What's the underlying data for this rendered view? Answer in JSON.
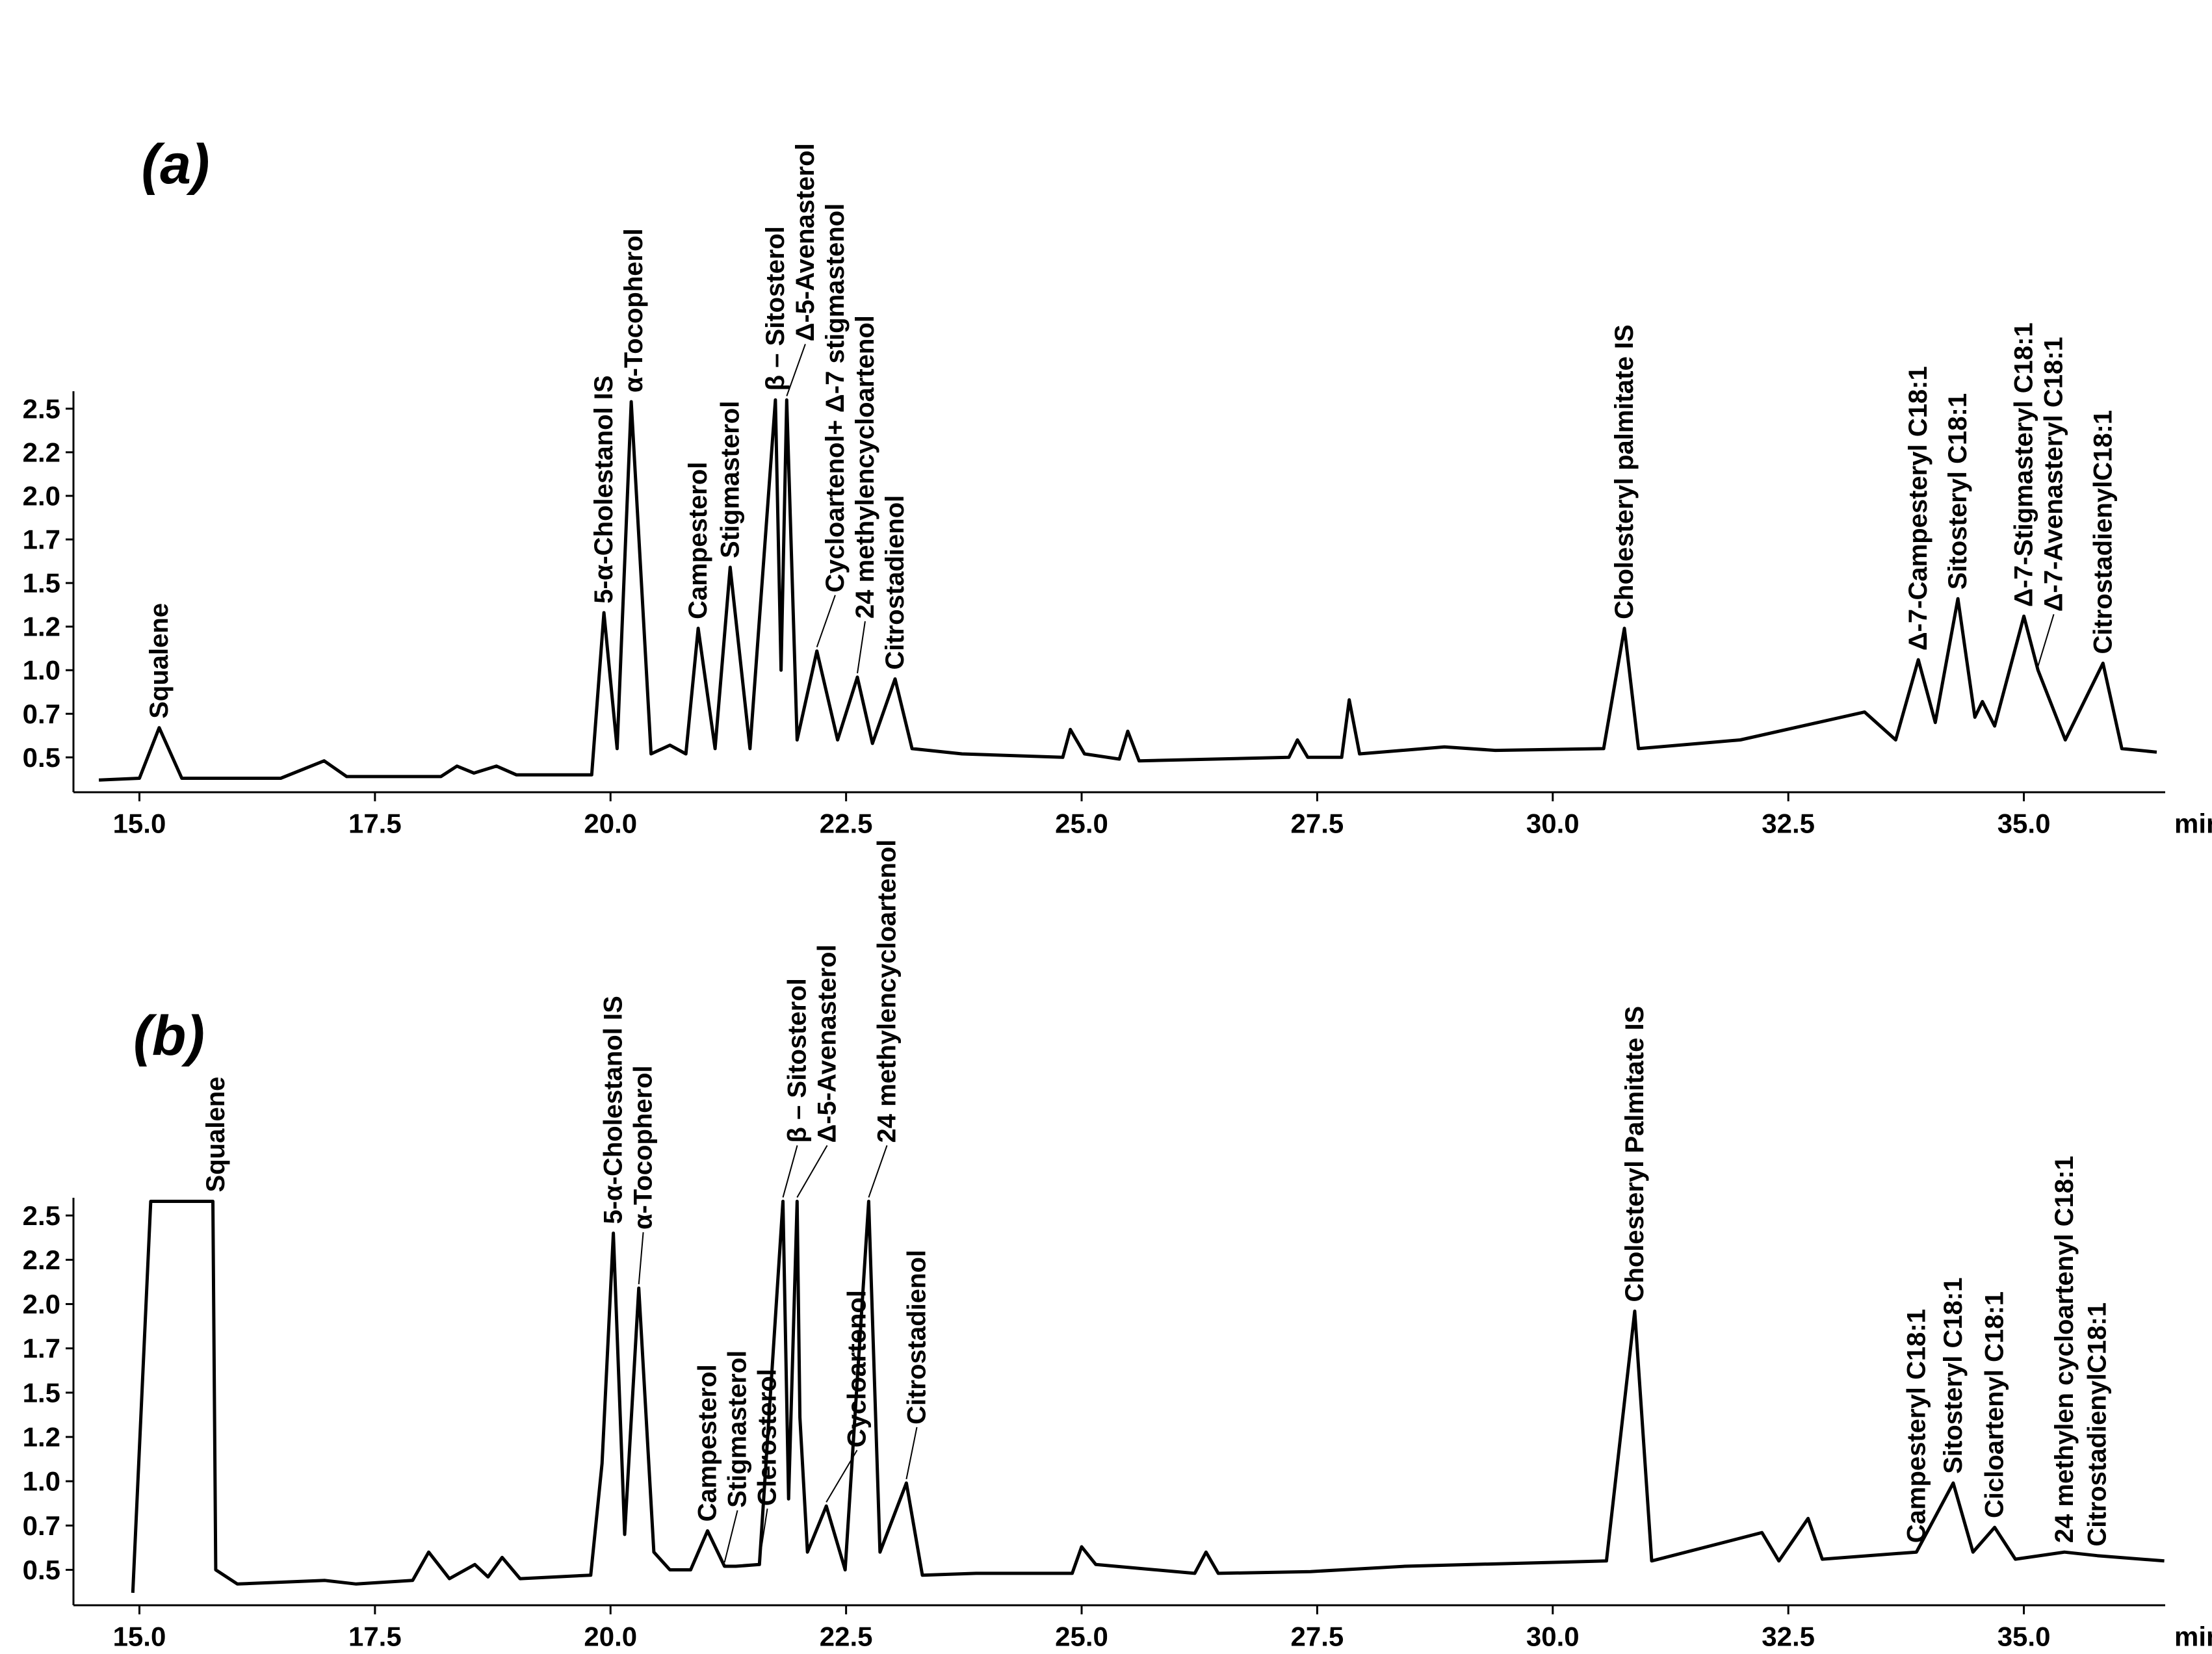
{
  "chart_data": [
    {
      "type": "line",
      "label": "(a)",
      "xlabel": "min",
      "color": "#000000",
      "xlim": [
        14.3,
        36.5
      ],
      "ylim": [
        0.3,
        2.6
      ],
      "xticks": [
        {
          "value": 15,
          "label": "15.0"
        },
        17.5,
        {
          "value": 20,
          "label": "20.0"
        },
        22.5,
        {
          "value": 25,
          "label": "25.0"
        },
        27.5,
        {
          "value": 30,
          "label": "30.0"
        },
        32.5,
        {
          "value": 35,
          "label": "35.0"
        }
      ],
      "yticks": [
        {
          "value": 2.5,
          "label": "2.5"
        },
        {
          "value": 2.25,
          "label": "2.2"
        },
        {
          "value": 2,
          "label": "2.0"
        },
        {
          "value": 1.75,
          "label": "1.7"
        },
        1.5,
        {
          "value": 1.25,
          "label": "1.2"
        },
        {
          "value": 1,
          "label": "1.0"
        },
        {
          "value": 0.75,
          "label": "0.7"
        },
        0.5
      ],
      "x": [
        14.57,
        15.0,
        15.21,
        15.45,
        16.5,
        16.96,
        17.2,
        18.2,
        18.37,
        18.55,
        18.79,
        19.0,
        19.8,
        19.93,
        20.07,
        20.22,
        20.43,
        20.63,
        20.8,
        20.93,
        21.11,
        21.27,
        21.48,
        21.75,
        21.81,
        21.87,
        21.98,
        22.19,
        22.41,
        22.62,
        22.78,
        23.02,
        23.2,
        23.73,
        24.8,
        24.88,
        25.03,
        25.4,
        25.49,
        25.61,
        27.2,
        27.29,
        27.4,
        27.76,
        27.84,
        27.95,
        28.85,
        29.39,
        30.54,
        30.76,
        30.91,
        31.99,
        33.31,
        33.64,
        33.88,
        34.06,
        34.3,
        34.48,
        34.56,
        34.69,
        35.0,
        35.15,
        35.44,
        35.84,
        36.04,
        36.41
      ],
      "values": [
        0.37,
        0.38,
        0.67,
        0.38,
        0.38,
        0.48,
        0.39,
        0.39,
        0.45,
        0.41,
        0.45,
        0.4,
        0.4,
        1.33,
        0.55,
        2.54,
        0.52,
        0.57,
        0.52,
        1.24,
        0.55,
        1.59,
        0.55,
        2.55,
        1.0,
        2.55,
        0.6,
        1.11,
        0.6,
        0.96,
        0.58,
        0.95,
        0.55,
        0.52,
        0.5,
        0.66,
        0.52,
        0.49,
        0.65,
        0.48,
        0.5,
        0.6,
        0.5,
        0.5,
        0.83,
        0.52,
        0.56,
        0.54,
        0.55,
        1.24,
        0.55,
        0.6,
        0.76,
        0.6,
        1.06,
        0.7,
        1.41,
        0.73,
        0.82,
        0.68,
        1.31,
        1.0,
        0.6,
        1.04,
        0.55,
        0.53
      ],
      "annotations": [
        {
          "text": "Squalene",
          "x": 15.21
        },
        {
          "text": "5-α-Cholestanol IS",
          "x": 19.93
        },
        {
          "text": "α-Tocopherol",
          "x": 20.22
        },
        {
          "text": "Campesterol",
          "x": 20.93
        },
        {
          "text": "Stigmasterol",
          "x": 21.27
        },
        {
          "text": "β – Sitosterol",
          "x": 21.75
        },
        {
          "text": "Δ-5-Avenasterol",
          "x": 21.87
        },
        {
          "text": "Cycloartenol+ Δ-7 stigmastenol",
          "x": 22.19
        },
        {
          "text": "24 methylencycloartenol",
          "x": 22.62
        },
        {
          "text": "Citrostadienol",
          "x": 23.02
        },
        {
          "text": "Cholesteryl palmitate IS",
          "x": 30.76
        },
        {
          "text": "Δ-7-Campesteryl C18:1",
          "x": 33.88
        },
        {
          "text": "Sitosteryl C18:1",
          "x": 34.3
        },
        {
          "text": "Δ-7-Stigmasteryl C18:1",
          "x": 35.0
        },
        {
          "text": "Δ-7-Avenasteryl C18:1",
          "x": 35.15
        },
        {
          "text": "CitrostadienylC18:1",
          "x": 35.84
        }
      ]
    },
    {
      "type": "line",
      "label": "(b)",
      "xlabel": "min",
      "color": "#000000",
      "xlim": [
        14.3,
        36.5
      ],
      "ylim": [
        0.3,
        2.6
      ],
      "xticks": [
        {
          "value": 15,
          "label": "15.0"
        },
        17.5,
        {
          "value": 20,
          "label": "20.0"
        },
        22.5,
        {
          "value": 25,
          "label": "25.0"
        },
        27.5,
        {
          "value": 30,
          "label": "30.0"
        },
        32.5,
        {
          "value": 35,
          "label": "35.0"
        }
      ],
      "yticks": [
        {
          "value": 2.5,
          "label": "2.5"
        },
        {
          "value": 2.25,
          "label": "2.2"
        },
        {
          "value": 2,
          "label": "2.0"
        },
        {
          "value": 1.75,
          "label": "1.7"
        },
        1.5,
        {
          "value": 1.25,
          "label": "1.2"
        },
        {
          "value": 1,
          "label": "1.0"
        },
        {
          "value": 0.75,
          "label": "0.7"
        },
        0.5
      ],
      "x": [
        14.93,
        15.12,
        15.78,
        15.81,
        16.04,
        16.97,
        17.3,
        17.9,
        18.07,
        18.29,
        18.56,
        18.7,
        18.85,
        19.04,
        19.79,
        19.91,
        20.03,
        20.15,
        20.3,
        20.46,
        20.63,
        20.85,
        21.03,
        21.21,
        21.33,
        21.58,
        21.83,
        21.89,
        21.98,
        22.01,
        22.09,
        22.29,
        22.49,
        22.74,
        22.86,
        23.14,
        23.31,
        23.88,
        24.9,
        25.0,
        25.15,
        26.2,
        26.32,
        26.45,
        27.43,
        28.43,
        30.57,
        30.87,
        31.05,
        32.22,
        32.4,
        32.71,
        32.86,
        33.86,
        34.25,
        34.46,
        34.69,
        34.91,
        35.43,
        35.78,
        36.49
      ],
      "values": [
        0.37,
        2.58,
        2.58,
        0.5,
        0.42,
        0.44,
        0.42,
        0.44,
        0.6,
        0.45,
        0.53,
        0.46,
        0.57,
        0.45,
        0.47,
        1.1,
        2.4,
        0.7,
        2.09,
        0.6,
        0.5,
        0.5,
        0.72,
        0.52,
        0.52,
        0.53,
        2.58,
        0.9,
        2.58,
        1.36,
        0.6,
        0.86,
        0.5,
        2.58,
        0.6,
        0.99,
        0.47,
        0.48,
        0.48,
        0.63,
        0.53,
        0.48,
        0.6,
        0.48,
        0.49,
        0.52,
        0.55,
        1.96,
        0.55,
        0.71,
        0.55,
        0.79,
        0.56,
        0.6,
        0.99,
        0.6,
        0.74,
        0.56,
        0.6,
        0.58,
        0.55
      ],
      "annotations": [
        {
          "text": "Squalene",
          "x": 15.81
        },
        {
          "text": "5-α-Cholestanol IS",
          "x": 20.03
        },
        {
          "text": "α-Tocopherol",
          "x": 20.3
        },
        {
          "text": "Campesterol",
          "x": 21.03
        },
        {
          "text": "Stigmasterol",
          "x": 21.21
        },
        {
          "text": "Clerosterol",
          "x": 21.58
        },
        {
          "text": "β – Sitosterol",
          "x": 21.83
        },
        {
          "text": "Δ-5-Avenasterol",
          "x": 21.98
        },
        {
          "text": "Cycloartenol",
          "x": 22.29
        },
        {
          "text": "24 methylencycloartenol",
          "x": 22.74
        },
        {
          "text": "Citrostadienol",
          "x": 23.14
        },
        {
          "text": "Cholesteryl Palmitate IS",
          "x": 30.87
        },
        {
          "text": "Campesteryl C18:1",
          "x": 33.86
        },
        {
          "text": "Sitosteryl C18:1",
          "x": 34.25
        },
        {
          "text": "Cicloartenyl C18:1",
          "x": 34.69
        },
        {
          "text": "24 methylen cycloartenyl C18:1",
          "x": 35.43
        },
        {
          "text": "CitrostadienylC18:1",
          "x": 35.78
        }
      ]
    }
  ]
}
